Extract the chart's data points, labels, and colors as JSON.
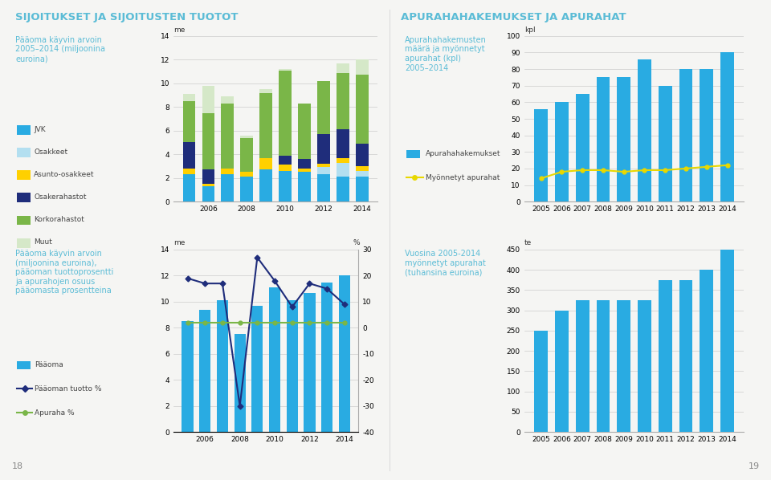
{
  "title_left": "SIJOITUKSET JA SIJOITUSTEN TUOTOT",
  "title_right": "APURAHAHAKEMUKSET JA APURAHAT",
  "title_color": "#5bbcd6",
  "bg_color": "#f5f5f3",
  "chart1": {
    "subtitle": "Pääoma käyvin arvoin\n2005–2014 (miljoonina\neuroina)",
    "ylabel": "me",
    "years": [
      2005,
      2006,
      2007,
      2008,
      2009,
      2010,
      2011,
      2012,
      2013,
      2014
    ],
    "JVK": [
      2.3,
      1.3,
      2.3,
      2.1,
      2.7,
      2.6,
      2.5,
      2.3,
      2.1,
      2.1
    ],
    "Osakkeet": [
      0.0,
      0.0,
      0.0,
      0.0,
      0.0,
      0.0,
      0.0,
      0.6,
      1.2,
      0.5
    ],
    "Asunto_osakkeet": [
      0.5,
      0.2,
      0.5,
      0.4,
      1.0,
      0.5,
      0.3,
      0.3,
      0.4,
      0.4
    ],
    "Osakerahastot": [
      2.2,
      1.2,
      0.0,
      0.0,
      0.0,
      0.8,
      0.8,
      2.5,
      2.4,
      1.9
    ],
    "Korkorahastot": [
      3.5,
      4.8,
      5.5,
      2.9,
      5.5,
      7.2,
      4.7,
      4.5,
      4.8,
      5.8
    ],
    "Muut": [
      0.6,
      2.3,
      0.6,
      0.2,
      0.3,
      0.1,
      0.0,
      0.0,
      0.8,
      1.3
    ],
    "colors": {
      "JVK": "#29abe2",
      "Osakkeet": "#b3dff0",
      "Asunto_osakkeet": "#ffd000",
      "Osakerahastot": "#1f2d7b",
      "Korkorahastot": "#7ab648",
      "Muut": "#d5e8c8"
    },
    "ylim": [
      0,
      14
    ],
    "yticks": [
      0,
      2,
      4,
      6,
      8,
      10,
      12,
      14
    ]
  },
  "chart2": {
    "subtitle": "Apurahahakemusten\nmäärä ja myönnetyt\napurahat (kpl)\n2005–2014",
    "ylabel": "kpl",
    "years": [
      2005,
      2006,
      2007,
      2008,
      2009,
      2010,
      2011,
      2012,
      2013,
      2014
    ],
    "apurahahakemukset": [
      56,
      60,
      65,
      75,
      75,
      86,
      70,
      80,
      80,
      90
    ],
    "myonnetyt": [
      14,
      18,
      19,
      19,
      18,
      19,
      19,
      20,
      21,
      22
    ],
    "bar_color": "#29abe2",
    "line_color": "#e8d800",
    "ylim": [
      0,
      100
    ],
    "yticks": [
      0,
      10,
      20,
      30,
      40,
      50,
      60,
      70,
      80,
      90,
      100
    ]
  },
  "chart3": {
    "subtitle": "Pääoma käyvin arvoin\n(miljoonina euroina),\npääoman tuottoprosentti\nja apurahojen osuus\npääomasta prosentteina",
    "ylabel_left": "me",
    "ylabel_right": "%",
    "years": [
      2005,
      2006,
      2007,
      2008,
      2009,
      2010,
      2011,
      2012,
      2013,
      2014
    ],
    "paaoma": [
      8.5,
      9.4,
      10.1,
      7.5,
      9.7,
      11.1,
      10.1,
      10.7,
      11.5,
      12.0
    ],
    "paaoman_tuotto": [
      19,
      17,
      17,
      -30,
      27,
      18,
      8,
      17,
      15,
      9
    ],
    "apuraha_pct": [
      2,
      2,
      2,
      2,
      2,
      2,
      2,
      2,
      2,
      2
    ],
    "bar_color": "#29abe2",
    "line1_color": "#1f2d7b",
    "line2_color": "#7ab648",
    "ylim_left": [
      0,
      14
    ],
    "ylim_right": [
      -40,
      30
    ],
    "yticks_left": [
      0,
      2,
      4,
      6,
      8,
      10,
      12,
      14
    ],
    "yticks_right": [
      -40,
      -30,
      -20,
      -10,
      0,
      10,
      20,
      30
    ]
  },
  "chart4": {
    "subtitle": "Vuosina 2005-2014\nmyönnetyt apurahat\n(tuhansina euroina)",
    "ylabel": "te",
    "years": [
      2005,
      2006,
      2007,
      2008,
      2009,
      2010,
      2011,
      2012,
      2013,
      2014
    ],
    "values": [
      250,
      300,
      325,
      325,
      325,
      325,
      375,
      375,
      400,
      450
    ],
    "bar_color": "#29abe2",
    "ylim": [
      0,
      450
    ],
    "yticks": [
      0,
      50,
      100,
      150,
      200,
      250,
      300,
      350,
      400,
      450
    ]
  },
  "legend1_labels": [
    "JVK",
    "Osakkeet",
    "Asunto-osakkeet",
    "Osakerahastot",
    "Korkorahastot",
    "Muut"
  ],
  "legend1_colors": [
    "#29abe2",
    "#b3dff0",
    "#ffd000",
    "#1f2d7b",
    "#7ab648",
    "#d5e8c8"
  ],
  "legend3_labels": [
    "Pääoma",
    "Pääoman tuotto %",
    "Apuraha %"
  ],
  "legend3_colors": [
    "#29abe2",
    "#1f2d7b",
    "#7ab648"
  ],
  "page_left": "18",
  "page_right": "19"
}
